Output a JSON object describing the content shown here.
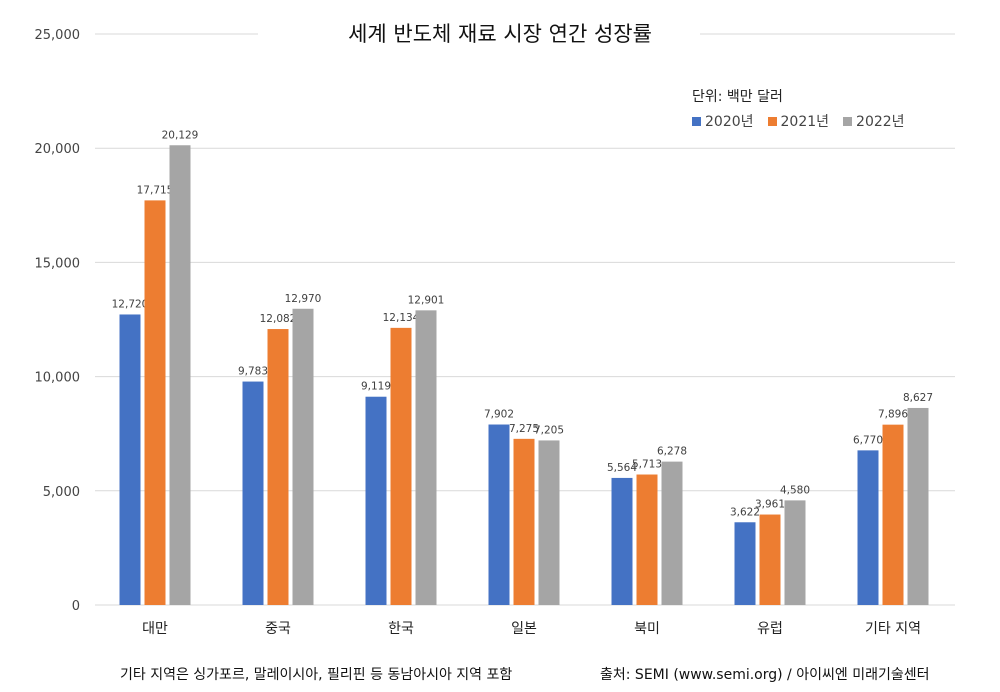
{
  "chart_data": {
    "type": "bar",
    "title": "세계 반도체 재료 시장 연간 성장률",
    "unit_label": "단위: 백만 달러",
    "categories": [
      "대만",
      "중국",
      "한국",
      "일본",
      "북미",
      "유럽",
      "기타 지역"
    ],
    "series": [
      {
        "name": "2020년",
        "color": "#4472C4",
        "values": [
          12720,
          9783,
          9119,
          7902,
          5564,
          3622,
          6770
        ]
      },
      {
        "name": "2021년",
        "color": "#ED7D31",
        "values": [
          17715,
          12082,
          12134,
          7275,
          5713,
          3961,
          7896
        ]
      },
      {
        "name": "2022년",
        "color": "#A5A5A5",
        "values": [
          20129,
          12970,
          12901,
          7205,
          6278,
          4580,
          8627
        ]
      }
    ],
    "ylim": [
      0,
      25000
    ],
    "yticks": [
      0,
      5000,
      10000,
      15000,
      20000,
      25000
    ],
    "ytick_labels": [
      "0",
      "5,000",
      "10,000",
      "15,000",
      "20,000",
      "25,000"
    ],
    "grid": true,
    "legend": "top-right"
  },
  "footnote": "기타 지역은 싱가포르, 말레이시아, 필리핀 등 동남아시아 지역 포함",
  "source": "출처: SEMI (www.semi.org) / 아이씨엔 미래기술센터"
}
